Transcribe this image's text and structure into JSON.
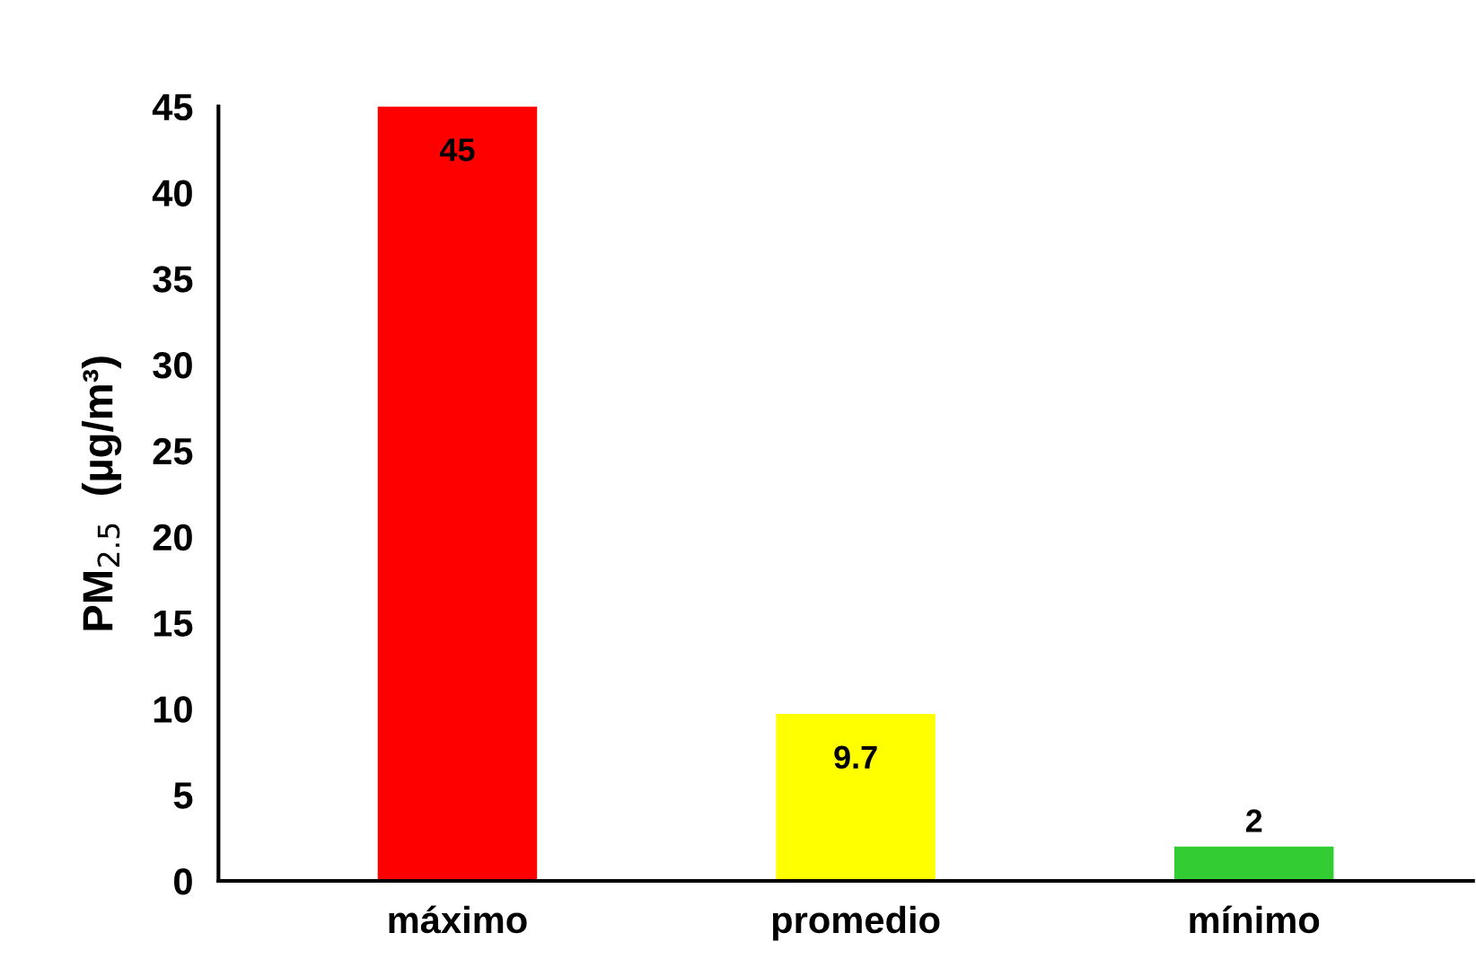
{
  "chart_data": {
    "type": "bar",
    "ylabel": "PM$_{2.5}$  (µg/m³)",
    "categories": [
      "máximo",
      "promedio",
      "mínimo"
    ],
    "values": [
      45,
      9.7,
      2
    ],
    "colors": [
      "#ff0000",
      "#ffff00",
      "#33cc33"
    ],
    "ylim": [
      0,
      45
    ],
    "yticks": [
      0,
      5,
      10,
      15,
      20,
      25,
      30,
      35,
      40,
      45
    ],
    "data_labels": true,
    "grid": false,
    "legend": false
  }
}
